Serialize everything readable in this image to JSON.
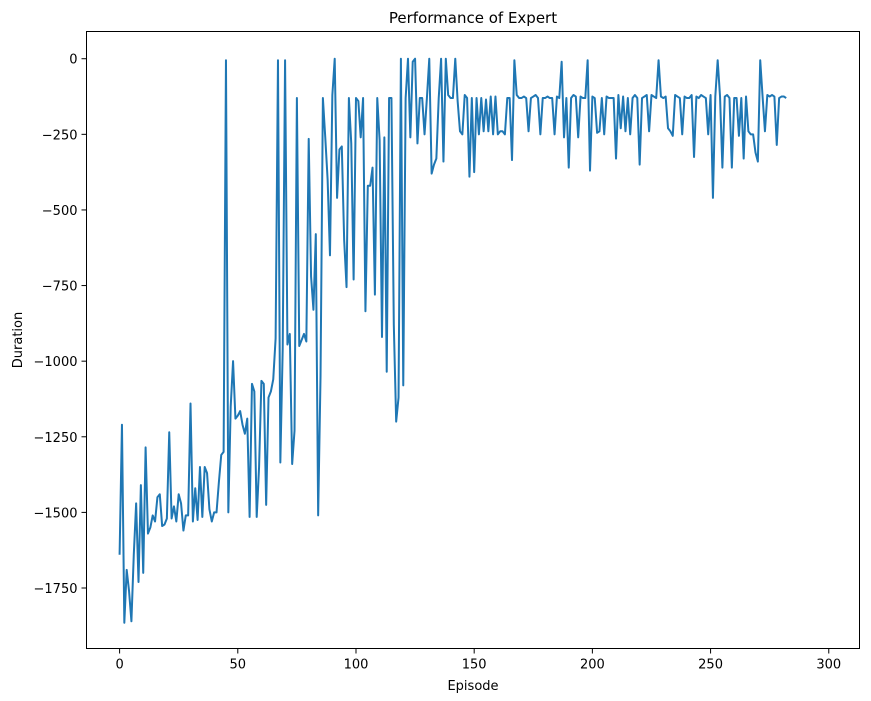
{
  "chart_data": {
    "type": "line",
    "title": "Performance of Expert",
    "xlabel": "Episode",
    "ylabel": "Duration",
    "xlim": [
      -14,
      313
    ],
    "ylim": [
      -1950,
      90
    ],
    "xticks": [
      0,
      50,
      100,
      150,
      200,
      250,
      300
    ],
    "xtick_labels": [
      "0",
      "50",
      "100",
      "150",
      "200",
      "250",
      "300"
    ],
    "yticks": [
      0,
      -250,
      -500,
      -750,
      -1000,
      -1250,
      -1500,
      -1750
    ],
    "ytick_labels": [
      "0",
      "−250",
      "−500",
      "−750",
      "−1000",
      "−1250",
      "−1500",
      "−1750"
    ],
    "grid": false,
    "line_color": "#1f77b4",
    "series": [
      {
        "x_start": 0,
        "values": [
          -1640,
          -1210,
          -1865,
          -1690,
          -1760,
          -1860,
          -1640,
          -1470,
          -1730,
          -1410,
          -1700,
          -1285,
          -1570,
          -1550,
          -1510,
          -1530,
          -1450,
          -1440,
          -1545,
          -1540,
          -1520,
          -1235,
          -1520,
          -1480,
          -1530,
          -1440,
          -1470,
          -1560,
          -1510,
          -1510,
          -1140,
          -1530,
          -1420,
          -1525,
          -1350,
          -1515,
          -1350,
          -1370,
          -1490,
          -1530,
          -1500,
          -1500,
          -1400,
          -1310,
          -1300,
          -5,
          -1500,
          -1150,
          -1000,
          -1190,
          -1180,
          -1165,
          -1210,
          -1240,
          -1190,
          -1515,
          -1075,
          -1100,
          -1515,
          -1350,
          -1065,
          -1075,
          -1475,
          -1120,
          -1100,
          -1060,
          -925,
          -5,
          -1335,
          -960,
          -5,
          -945,
          -910,
          -1340,
          -1230,
          -130,
          -950,
          -930,
          -910,
          -935,
          -265,
          -720,
          -830,
          -580,
          -1510,
          -1050,
          -130,
          -260,
          -400,
          -650,
          -120,
          0,
          -460,
          -300,
          -290,
          -600,
          -755,
          -130,
          -280,
          -730,
          -130,
          -140,
          -260,
          -130,
          -835,
          -420,
          -420,
          -360,
          -780,
          -130,
          -270,
          -920,
          -260,
          -1035,
          -130,
          -130,
          -880,
          -1200,
          -1120,
          0,
          -1080,
          -130,
          0,
          -260,
          -10,
          0,
          -280,
          -130,
          -130,
          -250,
          -130,
          0,
          -380,
          -350,
          -330,
          -130,
          0,
          -340,
          0,
          -120,
          -130,
          -130,
          0,
          -140,
          -240,
          -250,
          -120,
          -130,
          -390,
          -130,
          -375,
          -130,
          -250,
          -130,
          -240,
          -135,
          -240,
          -125,
          -250,
          -125,
          -250,
          -240,
          -240,
          -250,
          -130,
          -130,
          -335,
          -5,
          -120,
          -130,
          -130,
          -125,
          -130,
          -240,
          -130,
          -125,
          -120,
          -130,
          -250,
          -130,
          -130,
          -125,
          -130,
          -130,
          -250,
          -125,
          -130,
          -10,
          -260,
          -130,
          -360,
          -130,
          -120,
          -125,
          -260,
          -125,
          -130,
          -130,
          -5,
          -370,
          -125,
          -130,
          -245,
          -240,
          -130,
          -250,
          -125,
          -130,
          -130,
          -130,
          -330,
          -120,
          -230,
          -125,
          -240,
          -130,
          -250,
          -130,
          -120,
          -130,
          -350,
          -130,
          -125,
          -120,
          -240,
          -120,
          -125,
          -130,
          -5,
          -125,
          -130,
          -125,
          -230,
          -240,
          -255,
          -120,
          -125,
          -130,
          -250,
          -125,
          -130,
          -130,
          -120,
          -325,
          -125,
          -130,
          -120,
          -125,
          -130,
          -250,
          -120,
          -460,
          -125,
          -5,
          -125,
          -360,
          -125,
          -120,
          -130,
          -360,
          -130,
          -130,
          -255,
          -130,
          -330,
          -125,
          -240,
          -250,
          -250,
          -310,
          -340,
          -5,
          -125,
          -240,
          -120,
          -125,
          -120,
          -125,
          -285,
          -130,
          -125,
          -125,
          -130
        ]
      }
    ]
  }
}
